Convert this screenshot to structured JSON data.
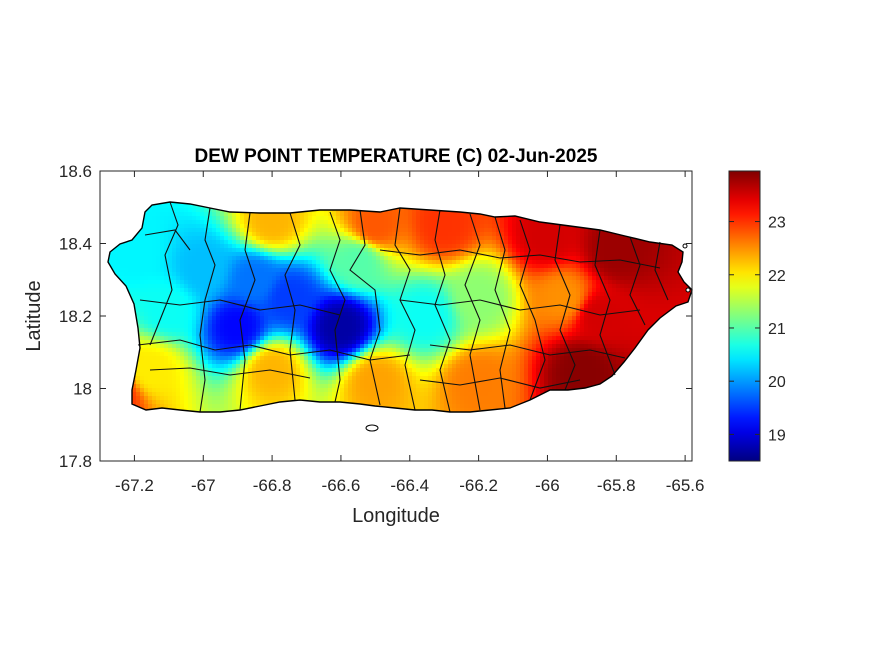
{
  "chart_data": {
    "type": "heatmap",
    "title": "DEW POINT TEMPERATURE (C) 02-Jun-2025",
    "xlabel": "Longitude",
    "ylabel": "Latitude",
    "xlim": [
      -67.3,
      -65.58
    ],
    "ylim": [
      17.8,
      18.6
    ],
    "x_ticks": [
      -67.2,
      -67,
      -66.8,
      -66.6,
      -66.4,
      -66.2,
      -66,
      -65.8,
      -65.6
    ],
    "x_tick_labels": [
      "-67.2",
      "-67",
      "-66.8",
      "-66.6",
      "-66.4",
      "-66.2",
      "-66",
      "-65.8",
      "-65.6"
    ],
    "y_ticks": [
      17.8,
      18,
      18.2,
      18.4,
      18.6
    ],
    "y_tick_labels": [
      "17.8",
      "18",
      "18.2",
      "18.4",
      "18.6"
    ],
    "colorbar": {
      "colormap": "jet",
      "range": [
        18.5,
        23.95
      ],
      "ticks": [
        19,
        20,
        21,
        22,
        23
      ],
      "tick_labels": [
        "19",
        "20",
        "21",
        "22",
        "23"
      ]
    },
    "field_anchors": [
      {
        "lon": -66.6,
        "lat": 18.17,
        "value": 18.7
      },
      {
        "lon": -66.9,
        "lat": 18.17,
        "value": 19.2
      },
      {
        "lon": -66.75,
        "lat": 18.25,
        "value": 19.5
      },
      {
        "lon": -66.85,
        "lat": 18.3,
        "value": 19.8
      },
      {
        "lon": -67.0,
        "lat": 18.33,
        "value": 20.2
      },
      {
        "lon": -67.2,
        "lat": 18.38,
        "value": 20.5
      },
      {
        "lon": -67.1,
        "lat": 18.22,
        "value": 20.6
      },
      {
        "lon": -66.35,
        "lat": 18.2,
        "value": 20.6
      },
      {
        "lon": -66.55,
        "lat": 18.35,
        "value": 21.0
      },
      {
        "lon": -66.2,
        "lat": 18.25,
        "value": 21.3
      },
      {
        "lon": -67.15,
        "lat": 18.05,
        "value": 22.0
      },
      {
        "lon": -66.8,
        "lat": 18.05,
        "value": 22.3
      },
      {
        "lon": -66.5,
        "lat": 18.02,
        "value": 22.4
      },
      {
        "lon": -66.2,
        "lat": 18.02,
        "value": 22.6
      },
      {
        "lon": -66.5,
        "lat": 18.45,
        "value": 22.8
      },
      {
        "lon": -66.8,
        "lat": 18.46,
        "value": 22.3
      },
      {
        "lon": -66.3,
        "lat": 18.45,
        "value": 23.0
      },
      {
        "lon": -66.0,
        "lat": 18.42,
        "value": 23.5
      },
      {
        "lon": -65.8,
        "lat": 18.38,
        "value": 23.8
      },
      {
        "lon": -65.85,
        "lat": 18.2,
        "value": 23.5
      },
      {
        "lon": -65.9,
        "lat": 18.05,
        "value": 23.9
      },
      {
        "lon": -65.95,
        "lat": 18.25,
        "value": 22.5
      },
      {
        "lon": -67.25,
        "lat": 17.98,
        "value": 23.0
      }
    ]
  }
}
